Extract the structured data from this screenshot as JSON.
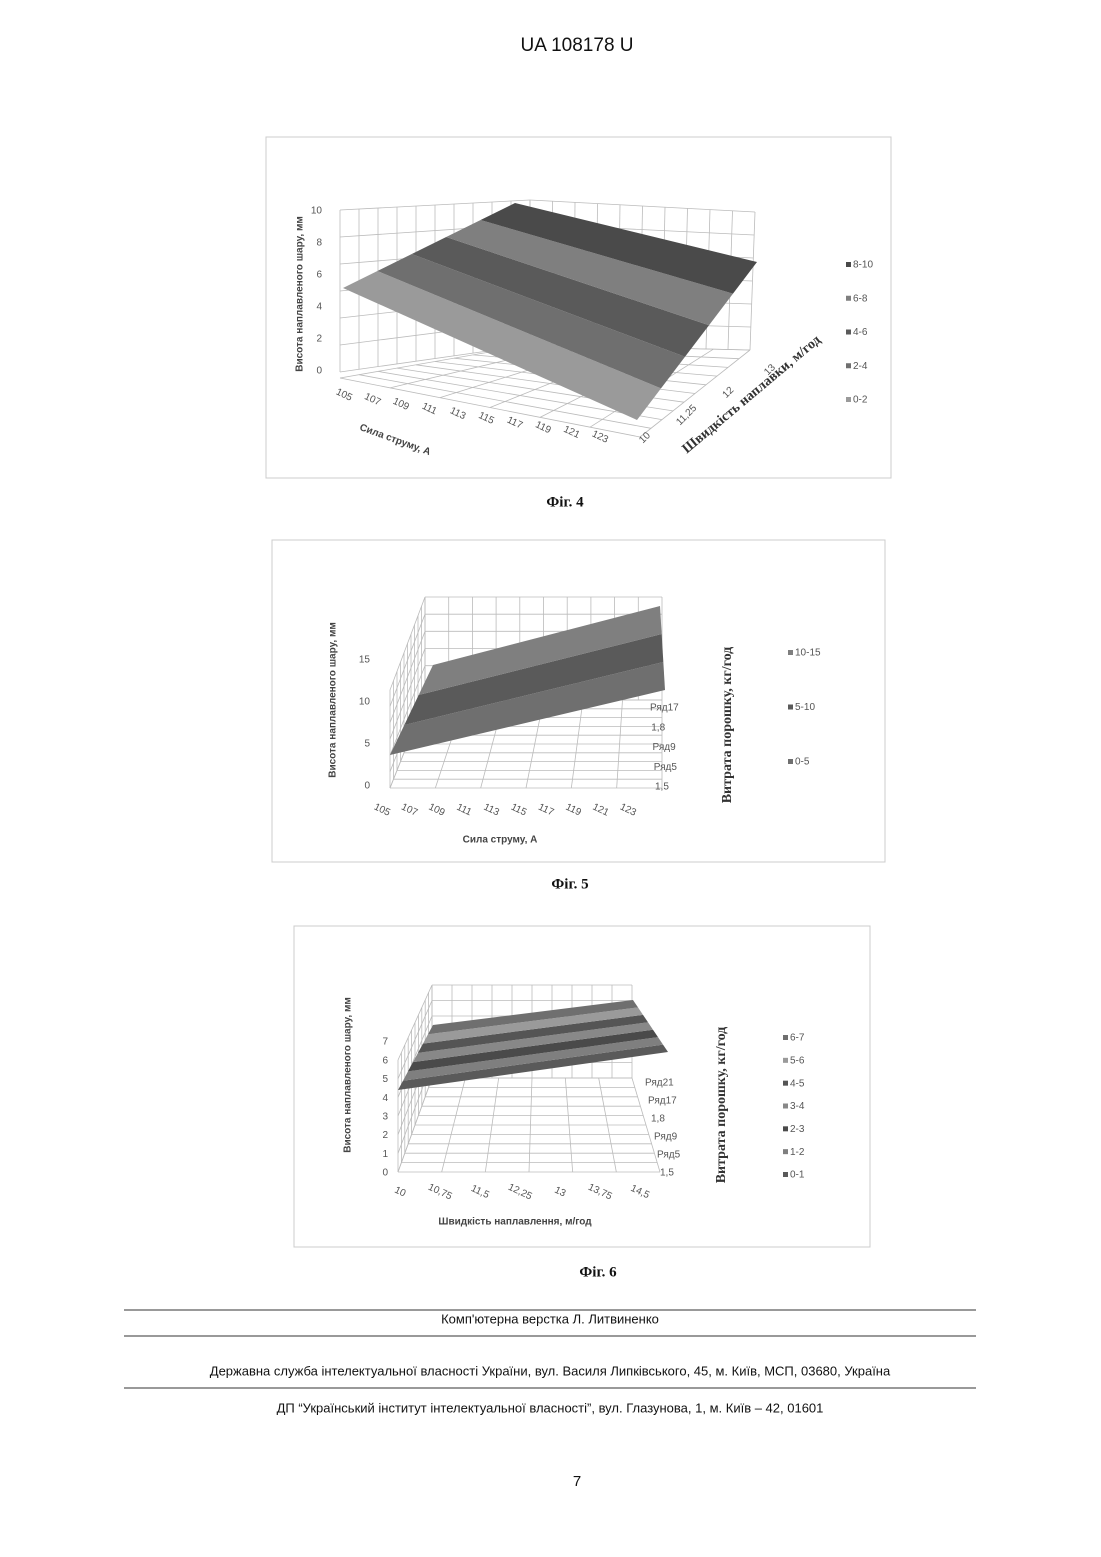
{
  "header": {
    "title": "UA   108178   U"
  },
  "figures": [
    {
      "caption": "Фіг. 4",
      "y_label": "Висота наплавленого шару, мм",
      "x_label": "Сила струму, А",
      "z_label": "Швидкість наплавки, м/год",
      "y_ticks": [
        "10",
        "8",
        "6",
        "4",
        "2",
        "0"
      ],
      "x_ticks": [
        "105",
        "107",
        "109",
        "111",
        "113",
        "115",
        "117",
        "119",
        "121",
        "123"
      ],
      "z_ticks": [
        "10",
        "11,25",
        "12",
        "13"
      ],
      "legend": [
        "8-10",
        "6-8",
        "4-6",
        "2-4",
        "0-2"
      ]
    },
    {
      "caption": "Фіг. 5",
      "y_label": "Висота наплавленого шару, мм",
      "x_label": "Сила струму, А",
      "z_label": "Витрата порошку, кг/год",
      "y_ticks": [
        "15",
        "10",
        "5",
        "0"
      ],
      "x_ticks": [
        "105",
        "107",
        "109",
        "111",
        "113",
        "115",
        "117",
        "119",
        "121",
        "123"
      ],
      "z_ticks": [
        "Ряд17",
        "1,8",
        "Ряд9",
        "Ряд5",
        "1,5"
      ],
      "legend": [
        "10-15",
        "5-10",
        "0-5"
      ]
    },
    {
      "caption": "Фіг. 6",
      "y_label": "Висота наплавленого шару, мм",
      "x_label": "Швидкість наплавлення, м/год",
      "z_label": "Витрата порошку, кг/год",
      "y_ticks": [
        "7",
        "6",
        "5",
        "4",
        "3",
        "2",
        "1",
        "0"
      ],
      "x_ticks": [
        "10",
        "10,75",
        "11,5",
        "12,25",
        "13",
        "13,75",
        "14,5"
      ],
      "z_ticks": [
        "Ряд21",
        "Ряд17",
        "1,8",
        "Ряд9",
        "Ряд5",
        "1,5"
      ],
      "legend": [
        "6-7",
        "5-6",
        "4-5",
        "3-4",
        "2-3",
        "1-2",
        "0-1"
      ]
    }
  ],
  "footer": {
    "layout": "Комп'ютерна верстка Л. Литвиненко",
    "office": "Державна служба інтелектуальної власності України, вул. Василя Липківського, 45, м. Київ, МСП, 03680, Україна",
    "institute": "ДП “Український інститут інтелектуальної власності”, вул. Глазунова, 1, м. Київ – 42, 01601",
    "page": "7"
  }
}
